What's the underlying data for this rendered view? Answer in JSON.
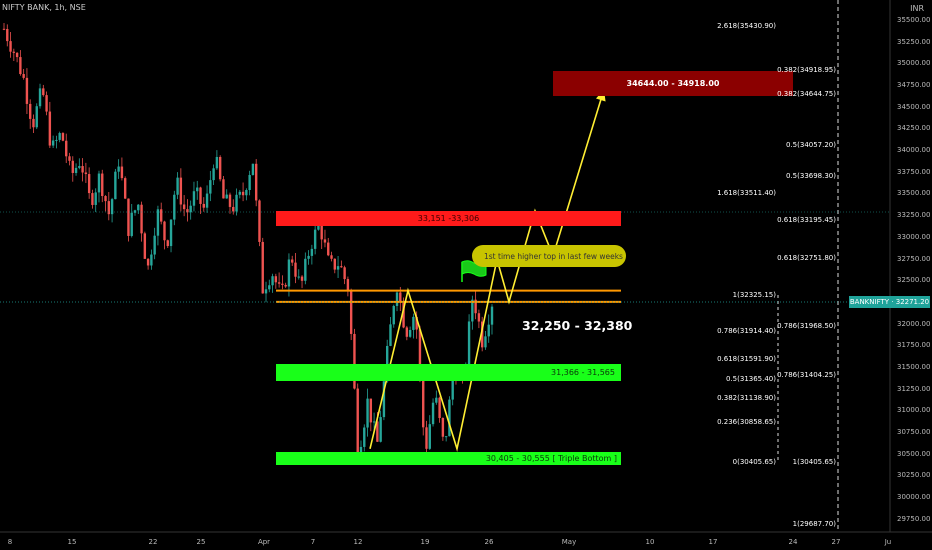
{
  "symbol_title": "NIFTY BANK, 1h, NSE",
  "currency": "INR",
  "current_price": {
    "symbol": "BANKNIFTY",
    "value": "32271.20"
  },
  "zones": {
    "resistance": "33,151 -33,306",
    "support_1": "31,366 - 31,565",
    "support_2": "30,405 - 30,555 [ Triple Bottom ]",
    "target": "34644.00 - 34918.00"
  },
  "range_label": "32,250 - 32,380",
  "note": "1st time higher top in last few weeks",
  "fib_labels_left": [
    {
      "text": "2.618(35430.90)",
      "price": 35430.9
    },
    {
      "text": "1.618(33511.40)",
      "price": 33511.4
    },
    {
      "text": "1(32325.15)",
      "price": 32325.15
    },
    {
      "text": "0.786(31914.40)",
      "price": 31914.4
    },
    {
      "text": "0.618(31591.90)",
      "price": 31591.9
    },
    {
      "text": "0.5(31365.40)",
      "price": 31365.4
    },
    {
      "text": "0.382(31138.90)",
      "price": 31138.9
    },
    {
      "text": "0.236(30858.65)",
      "price": 30858.65
    },
    {
      "text": "0(30405.65)",
      "price": 30405.65
    }
  ],
  "fib_labels_right": [
    {
      "text": "0.382(34918.95)",
      "price": 34918.95
    },
    {
      "text": "0.382(34644.75)",
      "price": 34644.75
    },
    {
      "text": "0.5(34057.20)",
      "price": 34057.2
    },
    {
      "text": "0.5(33698.30)",
      "price": 33698.3
    },
    {
      "text": "0.618(33195.45)",
      "price": 33195.45
    },
    {
      "text": "0.618(32751.80)",
      "price": 32751.8
    },
    {
      "text": "0.786(31968.50)",
      "price": 31968.5
    },
    {
      "text": "0.786(31404.25)",
      "price": 31404.25
    },
    {
      "text": "1(30405.65)",
      "price": 30405.65
    },
    {
      "text": "1(29687.70)",
      "price": 29687.7
    }
  ],
  "colors": {
    "up": "#26a69a",
    "down": "#ef5350",
    "resistance": "#ff1a1a",
    "support": "#19ff19",
    "target": "#8b0000",
    "path": "#ffee33",
    "level": "#ff9800"
  },
  "chart_data": {
    "type": "candlestick",
    "y_axis": {
      "min": 29687,
      "max": 35640,
      "unit": "INR",
      "ticks": [
        "35500.00",
        "35250.00",
        "35000.00",
        "34750.00",
        "34500.00",
        "34250.00",
        "34000.00",
        "33750.00",
        "33500.00",
        "33250.00",
        "33000.00",
        "32750.00",
        "32500.00",
        "32250.00",
        "32000.00",
        "31750.00",
        "31500.00",
        "31250.00",
        "31000.00",
        "30750.00",
        "30500.00",
        "30250.00",
        "30000.00",
        "29750.00"
      ],
      "tick_values": [
        35500,
        35250,
        35000,
        34750,
        34500,
        34250,
        34000,
        33750,
        33500,
        33250,
        33000,
        32750,
        32500,
        32250,
        32000,
        31750,
        31500,
        31250,
        31000,
        30750,
        30500,
        30250,
        30000,
        29750
      ]
    },
    "x_ticks": [
      "8",
      "15",
      "22",
      "25",
      "Apr",
      "7",
      "12",
      "19",
      "26",
      "May",
      "10",
      "17",
      "24",
      "27",
      "Ju"
    ],
    "price_path": [
      35400,
      35150,
      34850,
      34300,
      34700,
      34000,
      34200,
      33700,
      33900,
      33400,
      33700,
      33250,
      33900,
      33100,
      33400,
      32600,
      33300,
      32900,
      33650,
      33250,
      33500,
      33300,
      33950,
      33400,
      33350,
      33500,
      33900,
      32400,
      32600,
      32300,
      32800,
      32400,
      32900,
      33150,
      32650,
      32700,
      32400,
      30500,
      31100,
      30600,
      31600,
      32500,
      31900,
      32150,
      30500,
      31200,
      30550,
      31500,
      31300,
      32350,
      31800,
      32250
    ],
    "projection_path": [
      [
        370,
        30555
      ],
      [
        408,
        32380
      ],
      [
        457,
        30555
      ],
      [
        497,
        32740
      ],
      [
        509,
        32250
      ],
      [
        535,
        33300
      ],
      [
        553,
        32780
      ],
      [
        604,
        34700
      ]
    ],
    "levels": [
      32380,
      32250
    ]
  }
}
